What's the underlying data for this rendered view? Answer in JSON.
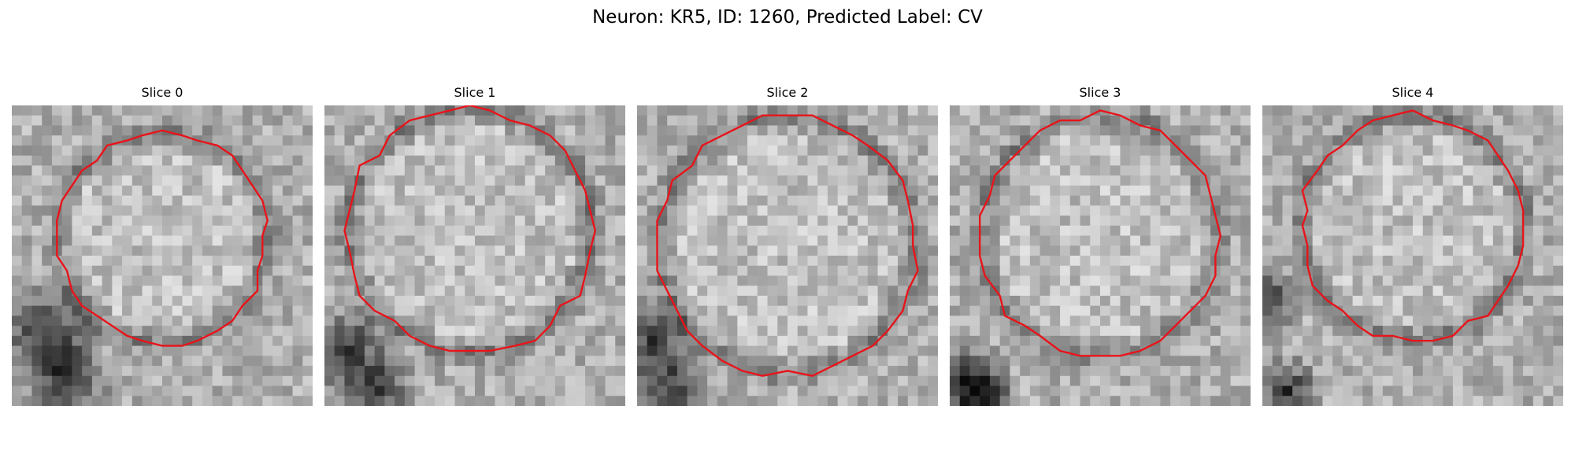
{
  "figure": {
    "title": "Neuron: KR5, ID: 1260, Predicted Label: CV"
  },
  "panels": [
    {
      "title": "Slice 0"
    },
    {
      "title": "Slice 1"
    },
    {
      "title": "Slice 2"
    },
    {
      "title": "Slice 3"
    },
    {
      "title": "Slice 4"
    }
  ],
  "colors": {
    "contour": "#e8141a",
    "background": "#ffffff"
  }
}
